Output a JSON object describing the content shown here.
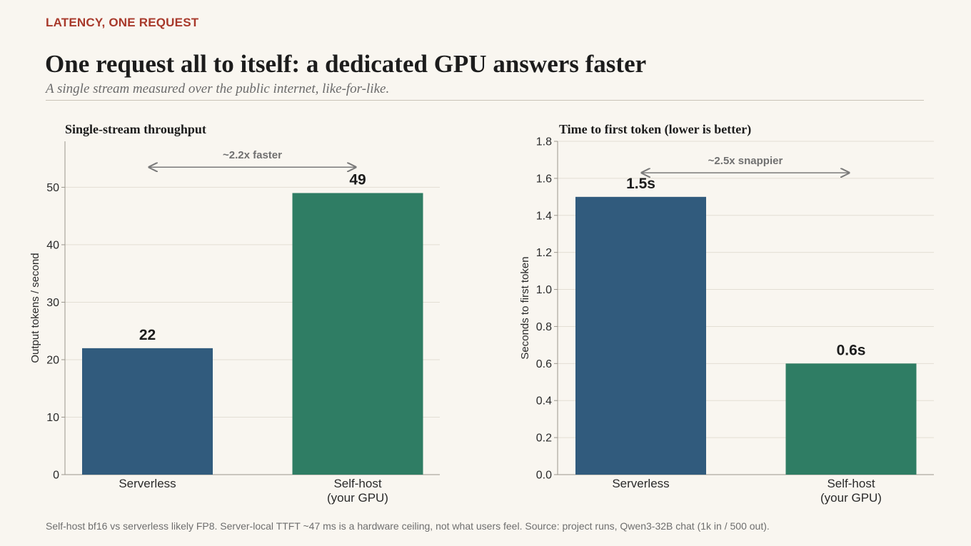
{
  "header": {
    "kicker": "LATENCY, ONE REQUEST",
    "title": "One request all to itself: a dedicated GPU answers faster",
    "subtitle": "A single stream measured over the public internet, like-for-like."
  },
  "footnote": "Self-host bf16 vs serverless likely FP8. Server-local TTFT ~47 ms is a hardware ceiling, not what users feel. Source: project runs, Qwen3-32B chat (1k in / 500 out).",
  "colors": {
    "serverless": "#315b7d",
    "selfhost": "#2f7d64",
    "grid": "#e3ded4",
    "axis": "#9a958c",
    "annotation": "#7a7a7a"
  },
  "chart_data": [
    {
      "type": "bar",
      "title": "Single-stream throughput",
      "ylabel": "Output tokens / second",
      "categories": [
        [
          "Serverless"
        ],
        [
          "Self-host",
          "(your GPU)"
        ]
      ],
      "values": [
        22,
        49
      ],
      "value_labels": [
        "22",
        "49"
      ],
      "ylim": [
        0,
        58
      ],
      "yticks": [
        0,
        10,
        20,
        30,
        40,
        50
      ],
      "ytick_labels": [
        "0",
        "10",
        "20",
        "30",
        "40",
        "50"
      ],
      "grid": true,
      "annotation": {
        "text": "~2.2x faster",
        "from_category": 0,
        "to_category": 1,
        "y": 53.5
      }
    },
    {
      "type": "bar",
      "title": "Time to first token  (lower is better)",
      "ylabel": "Seconds to first token",
      "categories": [
        [
          "Serverless"
        ],
        [
          "Self-host",
          "(your GPU)"
        ]
      ],
      "values": [
        1.5,
        0.6
      ],
      "value_labels": [
        "1.5s",
        "0.6s"
      ],
      "ylim": [
        0,
        1.8
      ],
      "yticks": [
        0,
        0.2,
        0.4,
        0.6,
        0.8,
        1.0,
        1.2,
        1.4,
        1.6,
        1.8
      ],
      "ytick_labels": [
        "0.0",
        "0.2",
        "0.4",
        "0.6",
        "0.8",
        "1.0",
        "1.2",
        "1.4",
        "1.6",
        "1.8"
      ],
      "grid": true,
      "annotation": {
        "text": "~2.5x snappier",
        "from_category": 0,
        "to_category": 1,
        "y": 1.63
      }
    }
  ]
}
